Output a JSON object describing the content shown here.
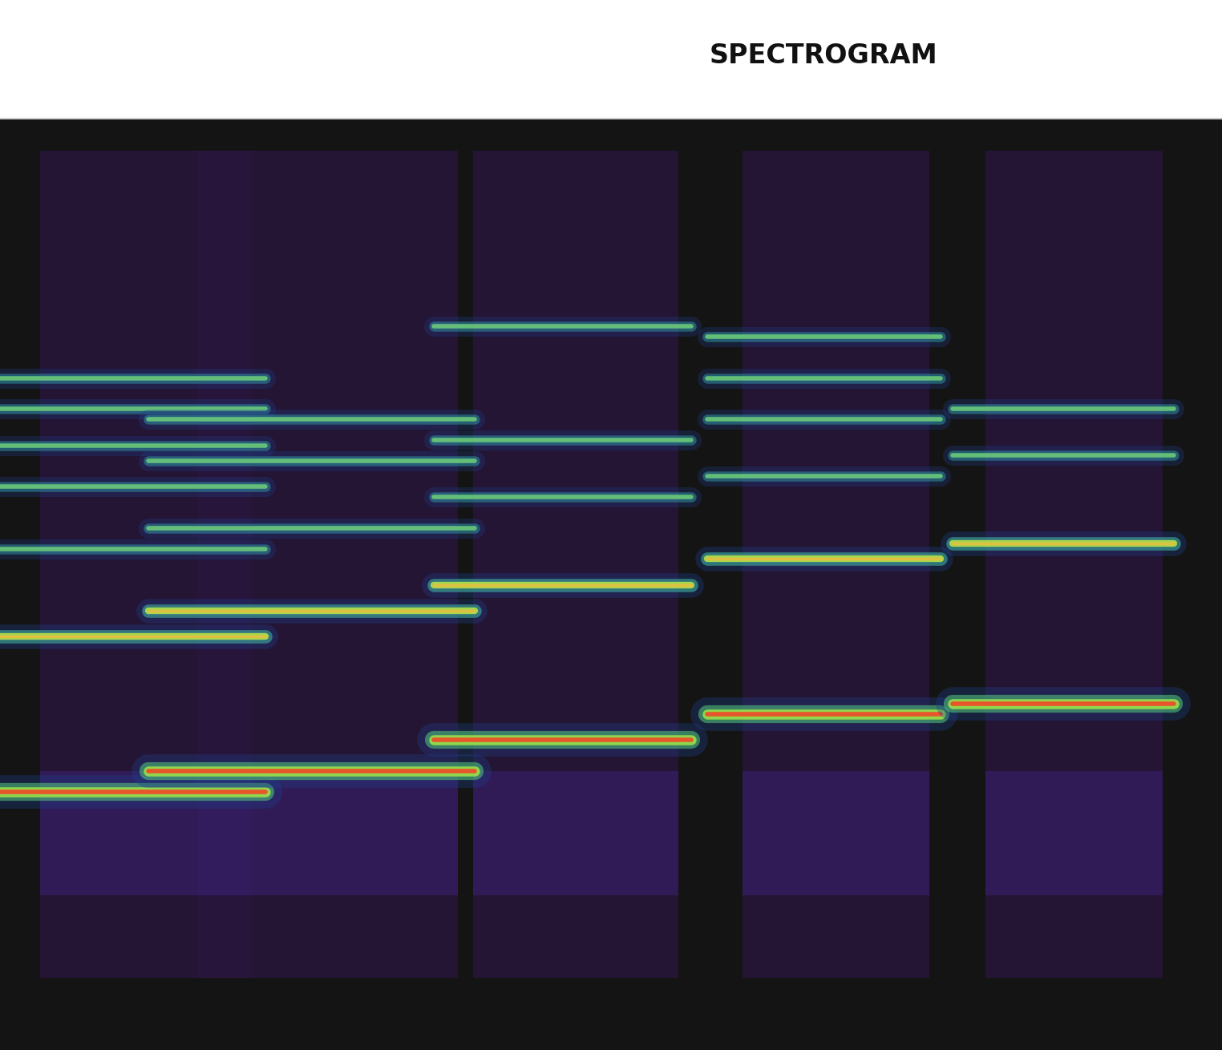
{
  "chart_data": {
    "type": "spectrogram",
    "title": "SPECTROGRAM",
    "tick_labels": false,
    "notes": [
      {
        "start": 0.0,
        "end": 3.3,
        "harmonics": [
          29,
          44,
          52.5,
          58.5,
          62.5,
          66,
          69
        ]
      },
      {
        "start": 1.85,
        "end": 5.9,
        "harmonics": [
          31,
          46.5,
          54.5,
          61,
          65
        ]
      },
      {
        "start": 5.4,
        "end": 8.6,
        "harmonics": [
          34,
          49,
          57.5,
          63,
          74
        ]
      },
      {
        "start": 8.8,
        "end": 11.7,
        "harmonics": [
          36.5,
          51.5,
          59.5,
          65,
          69,
          73
        ]
      },
      {
        "start": 11.85,
        "end": 14.6,
        "harmonics": [
          37.5,
          53,
          61.5,
          66
        ]
      }
    ]
  }
}
